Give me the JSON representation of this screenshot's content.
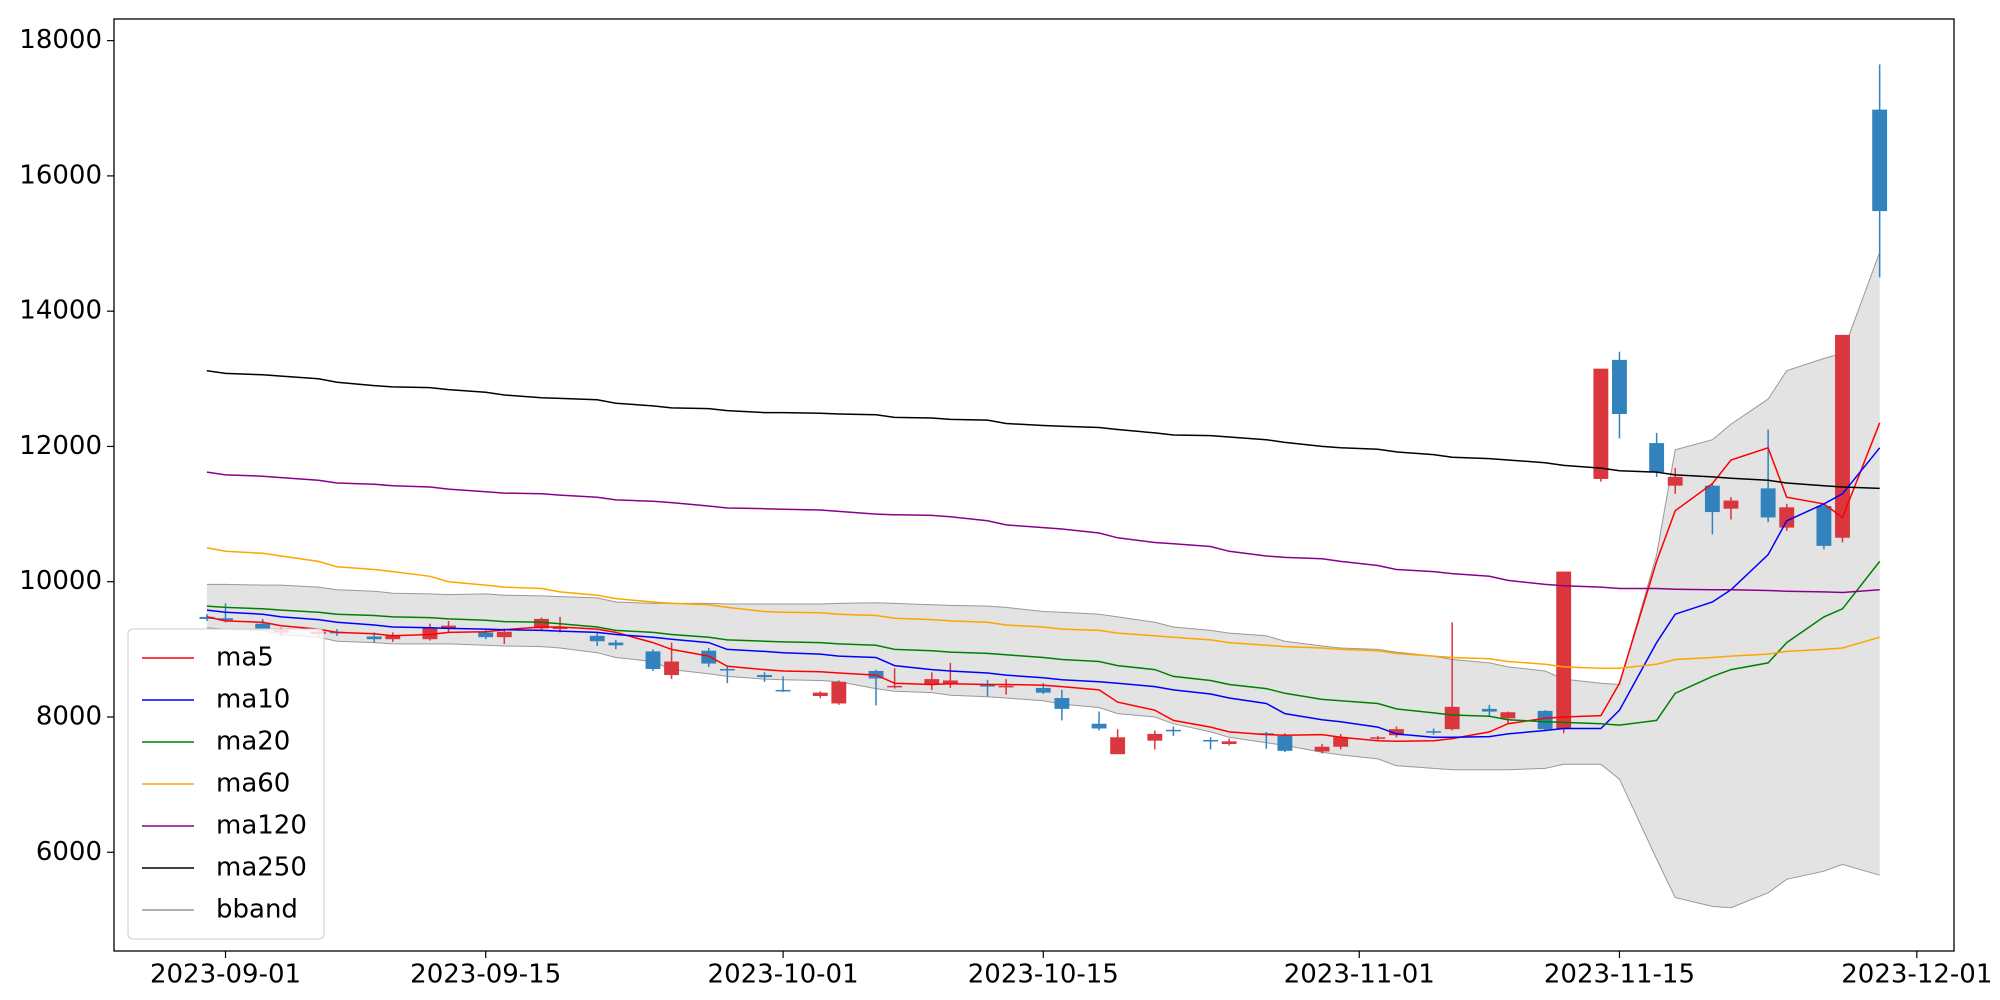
{
  "chart_data": {
    "type": "candlestick",
    "x": [
      "2023-08-31",
      "2023-09-01",
      "2023-09-03",
      "2023-09-04",
      "2023-09-06",
      "2023-09-07",
      "2023-09-09",
      "2023-09-10",
      "2023-09-12",
      "2023-09-13",
      "2023-09-15",
      "2023-09-16",
      "2023-09-18",
      "2023-09-19",
      "2023-09-21",
      "2023-09-22",
      "2023-09-24",
      "2023-09-25",
      "2023-09-27",
      "2023-09-28",
      "2023-09-30",
      "2023-10-01",
      "2023-10-03",
      "2023-10-04",
      "2023-10-06",
      "2023-10-07",
      "2023-10-09",
      "2023-10-10",
      "2023-10-12",
      "2023-10-13",
      "2023-10-15",
      "2023-10-16",
      "2023-10-18",
      "2023-10-19",
      "2023-10-21",
      "2023-10-22",
      "2023-10-24",
      "2023-10-25",
      "2023-10-27",
      "2023-10-28",
      "2023-10-30",
      "2023-10-31",
      "2023-11-02",
      "2023-11-03",
      "2023-11-05",
      "2023-11-06",
      "2023-11-08",
      "2023-11-09",
      "2023-11-11",
      "2023-11-12",
      "2023-11-14",
      "2023-11-15",
      "2023-11-17",
      "2023-11-18",
      "2023-11-20",
      "2023-11-21",
      "2023-11-23",
      "2023-11-24",
      "2023-11-26",
      "2023-11-27",
      "2023-11-29"
    ],
    "open": [
      9480,
      9460,
      9380,
      9250,
      9230,
      9260,
      9190,
      9150,
      9150,
      9300,
      9250,
      9180,
      9310,
      9300,
      9200,
      9100,
      8970,
      8620,
      8980,
      8710,
      8620,
      8400,
      8310,
      8200,
      8680,
      8440,
      8480,
      8480,
      8480,
      8440,
      8430,
      8280,
      7900,
      7450,
      7650,
      7810,
      7660,
      7600,
      7760,
      7720,
      7490,
      7560,
      7680,
      7730,
      7790,
      7820,
      8120,
      7980,
      8090,
      7820,
      11520,
      13280,
      12050,
      11420,
      11420,
      11080,
      11380,
      10800,
      11120,
      10650,
      16980
    ],
    "high": [
      9520,
      9680,
      9450,
      9320,
      9290,
      9300,
      9250,
      9250,
      9380,
      9420,
      9300,
      9310,
      9470,
      9480,
      9260,
      9140,
      9000,
      9100,
      9020,
      8760,
      8660,
      8600,
      8380,
      8540,
      8700,
      8720,
      8660,
      8800,
      8550,
      8560,
      8500,
      8400,
      8080,
      7820,
      7800,
      7860,
      7700,
      7680,
      7780,
      7760,
      7600,
      7750,
      7720,
      7860,
      7830,
      9400,
      8180,
      8080,
      8100,
      10150,
      13150,
      13400,
      12200,
      11680,
      11450,
      11250,
      12250,
      11150,
      11150,
      13650,
      17650
    ],
    "low": [
      9420,
      9400,
      9280,
      9200,
      9190,
      9200,
      9100,
      9110,
      9130,
      9260,
      9150,
      9080,
      9280,
      9250,
      9050,
      9000,
      8680,
      8560,
      8740,
      8500,
      8520,
      8370,
      8280,
      8180,
      8170,
      8420,
      8400,
      8430,
      8300,
      8330,
      8340,
      7950,
      7800,
      7450,
      7520,
      7720,
      7520,
      7580,
      7530,
      7480,
      7460,
      7520,
      7660,
      7700,
      7740,
      7800,
      8020,
      7900,
      7800,
      7760,
      11480,
      12120,
      11550,
      11300,
      10700,
      10920,
      10880,
      10750,
      10480,
      10580,
      14500
    ],
    "close": [
      9450,
      9430,
      9300,
      9280,
      9260,
      9240,
      9150,
      9200,
      9320,
      9350,
      9180,
      9260,
      9450,
      9330,
      9120,
      9060,
      8710,
      8820,
      8790,
      8690,
      8590,
      8380,
      8360,
      8520,
      8570,
      8460,
      8560,
      8540,
      8450,
      8460,
      8360,
      8120,
      7830,
      7700,
      7750,
      7790,
      7640,
      7640,
      7740,
      7500,
      7560,
      7700,
      7700,
      7820,
      7770,
      8150,
      8080,
      8070,
      7820,
      10150,
      13150,
      12480,
      11620,
      11550,
      11030,
      11200,
      10950,
      11100,
      10530,
      13650,
      15480
    ],
    "up_color": "#d9363e",
    "down_color": "#3182bd",
    "series": [
      {
        "name": "ma5",
        "color": "#ff0000",
        "values": [
          9480,
          9420,
          9400,
          9350,
          9300,
          9250,
          9230,
          9200,
          9220,
          9250,
          9260,
          9290,
          9330,
          9330,
          9300,
          9250,
          9100,
          9000,
          8900,
          8750,
          8700,
          8680,
          8670,
          8650,
          8620,
          8500,
          8480,
          8490,
          8480,
          8480,
          8470,
          8450,
          8400,
          8220,
          8100,
          7950,
          7850,
          7780,
          7740,
          7730,
          7740,
          7700,
          7650,
          7640,
          7650,
          7680,
          7780,
          7900,
          7980,
          8000,
          8020,
          8500,
          10300,
          11050,
          11450,
          11800,
          11980,
          11250,
          11150,
          10950,
          12350
        ]
      },
      {
        "name": "ma10",
        "color": "#0000ff",
        "values": [
          9580,
          9550,
          9520,
          9480,
          9440,
          9400,
          9360,
          9330,
          9320,
          9310,
          9300,
          9290,
          9280,
          9270,
          9250,
          9220,
          9180,
          9150,
          9100,
          9000,
          8970,
          8950,
          8930,
          8900,
          8880,
          8760,
          8700,
          8680,
          8650,
          8620,
          8580,
          8550,
          8520,
          8500,
          8450,
          8400,
          8340,
          8280,
          8200,
          8050,
          7960,
          7930,
          7850,
          7750,
          7700,
          7700,
          7710,
          7750,
          7800,
          7830,
          7830,
          8100,
          9100,
          9520,
          9700,
          9880,
          10400,
          10900,
          11150,
          11300,
          11980
        ]
      },
      {
        "name": "ma20",
        "color": "#008000",
        "values": [
          9640,
          9620,
          9600,
          9580,
          9550,
          9520,
          9500,
          9480,
          9470,
          9450,
          9430,
          9410,
          9400,
          9380,
          9330,
          9280,
          9250,
          9220,
          9180,
          9140,
          9120,
          9110,
          9100,
          9080,
          9060,
          9000,
          8980,
          8960,
          8940,
          8920,
          8880,
          8850,
          8820,
          8760,
          8700,
          8600,
          8540,
          8480,
          8420,
          8350,
          8260,
          8240,
          8200,
          8120,
          8060,
          8030,
          8010,
          7960,
          7930,
          7920,
          7900,
          7880,
          7950,
          8350,
          8600,
          8700,
          8800,
          9100,
          9480,
          9600,
          10300
        ]
      },
      {
        "name": "ma60",
        "color": "#ffa500",
        "values": [
          10500,
          10450,
          10420,
          10380,
          10300,
          10220,
          10180,
          10150,
          10080,
          10000,
          9950,
          9920,
          9900,
          9850,
          9800,
          9750,
          9700,
          9680,
          9660,
          9620,
          9560,
          9550,
          9540,
          9520,
          9500,
          9460,
          9440,
          9420,
          9400,
          9360,
          9330,
          9300,
          9280,
          9240,
          9200,
          9180,
          9140,
          9100,
          9060,
          9040,
          9020,
          9000,
          8980,
          8940,
          8900,
          8880,
          8860,
          8820,
          8780,
          8740,
          8720,
          8720,
          8780,
          8850,
          8880,
          8900,
          8930,
          8970,
          9000,
          9020,
          9180
        ]
      },
      {
        "name": "ma120",
        "color": "#8b008b",
        "values": [
          11620,
          11580,
          11560,
          11540,
          11500,
          11460,
          11440,
          11420,
          11400,
          11370,
          11330,
          11310,
          11300,
          11280,
          11250,
          11210,
          11190,
          11170,
          11120,
          11090,
          11080,
          11070,
          11060,
          11040,
          11000,
          10990,
          10980,
          10960,
          10900,
          10840,
          10800,
          10780,
          10720,
          10650,
          10580,
          10560,
          10520,
          10450,
          10380,
          10360,
          10340,
          10300,
          10240,
          10180,
          10150,
          10120,
          10080,
          10020,
          9960,
          9940,
          9920,
          9900,
          9900,
          9890,
          9880,
          9880,
          9870,
          9860,
          9850,
          9840,
          9880
        ]
      },
      {
        "name": "ma250",
        "color": "#000000",
        "values": [
          13120,
          13080,
          13060,
          13040,
          13000,
          12950,
          12900,
          12880,
          12870,
          12840,
          12800,
          12760,
          12720,
          12710,
          12690,
          12640,
          12600,
          12570,
          12560,
          12530,
          12500,
          12500,
          12490,
          12480,
          12470,
          12430,
          12420,
          12400,
          12390,
          12340,
          12310,
          12300,
          12280,
          12250,
          12200,
          12170,
          12160,
          12140,
          12100,
          12060,
          12000,
          11980,
          11960,
          11920,
          11880,
          11840,
          11820,
          11800,
          11760,
          11720,
          11680,
          11640,
          11620,
          11580,
          11550,
          11530,
          11500,
          11460,
          11420,
          11400,
          11380
        ]
      }
    ],
    "bband": {
      "name": "bband",
      "color": "#e3e3e3",
      "edge_color": "#999999",
      "upper": [
        9960,
        9960,
        9950,
        9950,
        9920,
        9880,
        9860,
        9830,
        9820,
        9810,
        9820,
        9800,
        9790,
        9780,
        9760,
        9700,
        9680,
        9680,
        9680,
        9670,
        9670,
        9670,
        9670,
        9680,
        9690,
        9680,
        9660,
        9650,
        9640,
        9620,
        9560,
        9550,
        9520,
        9480,
        9400,
        9330,
        9280,
        9240,
        9200,
        9120,
        9050,
        9020,
        9000,
        8960,
        8900,
        8850,
        8800,
        8740,
        8680,
        8560,
        8500,
        8480,
        10400,
        11950,
        12100,
        12330,
        12700,
        13120,
        13300,
        13380,
        14870
      ],
      "lower": [
        9320,
        9300,
        9280,
        9220,
        9180,
        9120,
        9100,
        9080,
        9080,
        9080,
        9060,
        9050,
        9040,
        9020,
        8950,
        8880,
        8820,
        8700,
        8640,
        8600,
        8560,
        8550,
        8540,
        8520,
        8420,
        8380,
        8360,
        8320,
        8300,
        8280,
        8240,
        8190,
        8140,
        8050,
        8000,
        7900,
        7780,
        7700,
        7620,
        7580,
        7480,
        7440,
        7380,
        7280,
        7240,
        7220,
        7220,
        7220,
        7240,
        7300,
        7300,
        7080,
        5900,
        5330,
        5200,
        5180,
        5400,
        5600,
        5720,
        5820,
        5660
      ]
    },
    "xlim": [
      "2023-08-26",
      "2023-12-03"
    ],
    "xticks": [
      "2023-09-01",
      "2023-09-15",
      "2023-10-01",
      "2023-10-15",
      "2023-11-01",
      "2023-11-15",
      "2023-12-01"
    ],
    "ylim": [
      4540,
      18320
    ],
    "yticks": [
      6000,
      8000,
      10000,
      12000,
      14000,
      16000,
      18000
    ],
    "legend": "lower left"
  }
}
